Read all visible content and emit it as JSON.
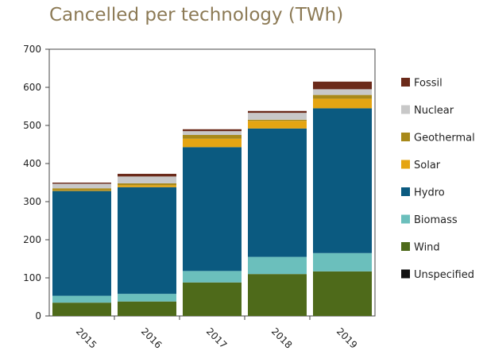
{
  "chart_data": {
    "type": "bar",
    "stacked": true,
    "title": "Cancelled per technology (TWh)",
    "xlabel": "",
    "ylabel": "",
    "categories": [
      "2015",
      "2016",
      "2017",
      "2018",
      "2019"
    ],
    "ylim": [
      0,
      700
    ],
    "yticks": [
      0,
      100,
      200,
      300,
      400,
      500,
      600,
      700
    ],
    "grid": false,
    "legend_position": "right",
    "series": [
      {
        "name": "Unspecified",
        "color": "#111111",
        "values": [
          0,
          0,
          0,
          0,
          0
        ]
      },
      {
        "name": "Wind",
        "color": "#4e6a1a",
        "values": [
          35,
          38,
          88,
          110,
          117
        ]
      },
      {
        "name": "Biomass",
        "color": "#6bbfbc",
        "values": [
          18,
          20,
          30,
          45,
          48
        ]
      },
      {
        "name": "Hydro",
        "color": "#0b5a80",
        "values": [
          275,
          280,
          325,
          337,
          380
        ]
      },
      {
        "name": "Solar",
        "color": "#e5a512",
        "values": [
          2,
          5,
          22,
          20,
          25
        ]
      },
      {
        "name": "Geothermal",
        "color": "#a8891a",
        "values": [
          5,
          5,
          10,
          3,
          10
        ]
      },
      {
        "name": "Nuclear",
        "color": "#c8c8c8",
        "values": [
          12,
          18,
          10,
          18,
          15
        ]
      },
      {
        "name": "Fossil",
        "color": "#6b2a1a",
        "values": [
          3,
          7,
          5,
          5,
          20
        ]
      }
    ],
    "legend_order": [
      "Fossil",
      "Nuclear",
      "Geothermal",
      "Solar",
      "Hydro",
      "Biomass",
      "Wind",
      "Unspecified"
    ]
  }
}
